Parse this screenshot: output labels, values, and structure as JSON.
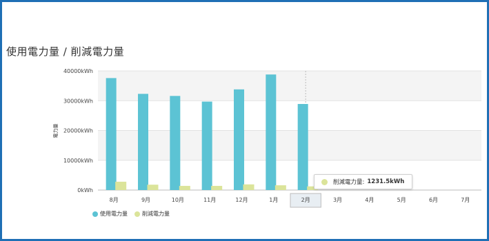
{
  "title": "使用電力量 / 削減電力量",
  "colors": {
    "usage": "#5cc3d4",
    "reduction": "#dbe49a",
    "border": "#1f6fb5"
  },
  "chart_data": {
    "type": "bar",
    "categories": [
      "8月",
      "9月",
      "10月",
      "11月",
      "12月",
      "1月",
      "2月",
      "3月",
      "4月",
      "5月",
      "6月",
      "7月"
    ],
    "series": [
      {
        "name": "使用電力量",
        "values": [
          37600,
          32300,
          31600,
          29700,
          33800,
          38800,
          28900,
          null,
          null,
          null,
          null,
          null
        ]
      },
      {
        "name": "削減電力量",
        "values": [
          2800,
          1800,
          1400,
          1400,
          1900,
          1600,
          1231.5,
          null,
          null,
          null,
          null,
          null
        ]
      }
    ],
    "ylabel": "電力量",
    "ylim": [
      0,
      40000
    ],
    "yticks": [
      "0kWh",
      "10000kWh",
      "20000kWh",
      "30000kWh",
      "40000kWh"
    ],
    "ytick_values": [
      0,
      10000,
      20000,
      30000,
      40000
    ],
    "highlight_category": "2月",
    "legend_position": "bottom-left"
  },
  "tooltip": {
    "label": "削減電力量:",
    "value": "1231.5kWh"
  }
}
